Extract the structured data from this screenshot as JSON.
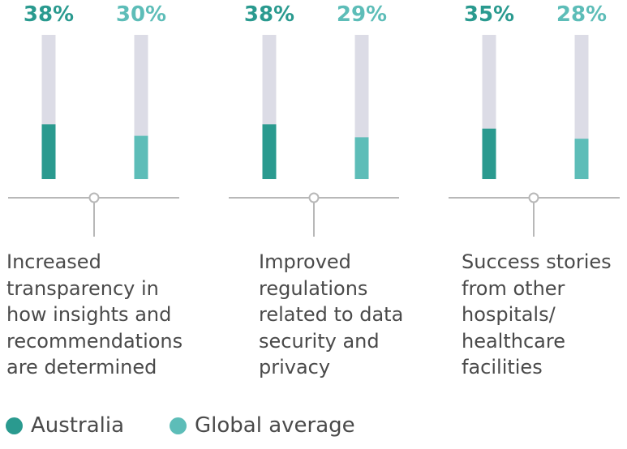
{
  "chart_data": {
    "type": "bar",
    "ylim": [
      0,
      100
    ],
    "colors": {
      "australia": "#2a9a8f",
      "global": "#5dbdb8",
      "track": "#dcdce6",
      "axis": "#b8b8b8"
    },
    "groups": [
      {
        "label_lines": [
          "Increased",
          "transparency in",
          "how insights and",
          "recommendations",
          "are determined"
        ],
        "australia": 38,
        "global": 30,
        "australia_label": "38%",
        "global_label": "30%"
      },
      {
        "label_lines": [
          "Improved",
          "regulations",
          "related to data",
          "security and",
          "privacy"
        ],
        "australia": 38,
        "global": 29,
        "australia_label": "38%",
        "global_label": "29%"
      },
      {
        "label_lines": [
          "Success stories",
          "from other",
          "hospitals/",
          "healthcare",
          "facilities"
        ],
        "australia": 35,
        "global": 28,
        "australia_label": "35%",
        "global_label": "28%"
      }
    ],
    "legend": [
      {
        "label": "Australia",
        "color": "#2a9a8f"
      },
      {
        "label": "Global average",
        "color": "#5dbdb8"
      }
    ]
  }
}
